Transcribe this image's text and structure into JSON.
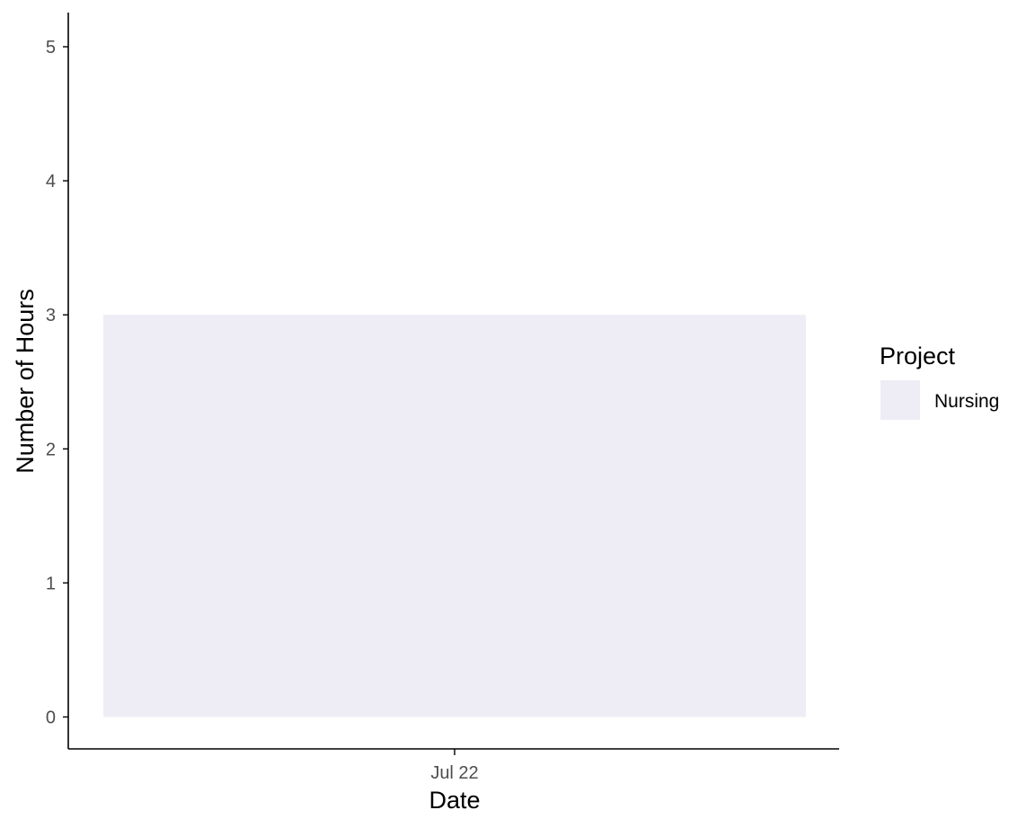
{
  "chart_data": {
    "type": "bar",
    "x": [
      "Jul 22"
    ],
    "series": [
      {
        "name": "Nursing",
        "values": [
          3
        ],
        "color": "#eeedf6"
      }
    ],
    "xlabel": "Date",
    "ylabel": "Number of Hours",
    "ylim": [
      0,
      5
    ],
    "yticks": [
      0,
      1,
      2,
      3,
      4,
      5
    ],
    "xticks": [
      "Jul 22"
    ],
    "grid": false,
    "legend": {
      "title": "Project",
      "placement": "right",
      "entries": [
        "Nursing"
      ]
    },
    "colors": {
      "axis": "#000000",
      "tick_label": "#4d4d4d"
    }
  }
}
